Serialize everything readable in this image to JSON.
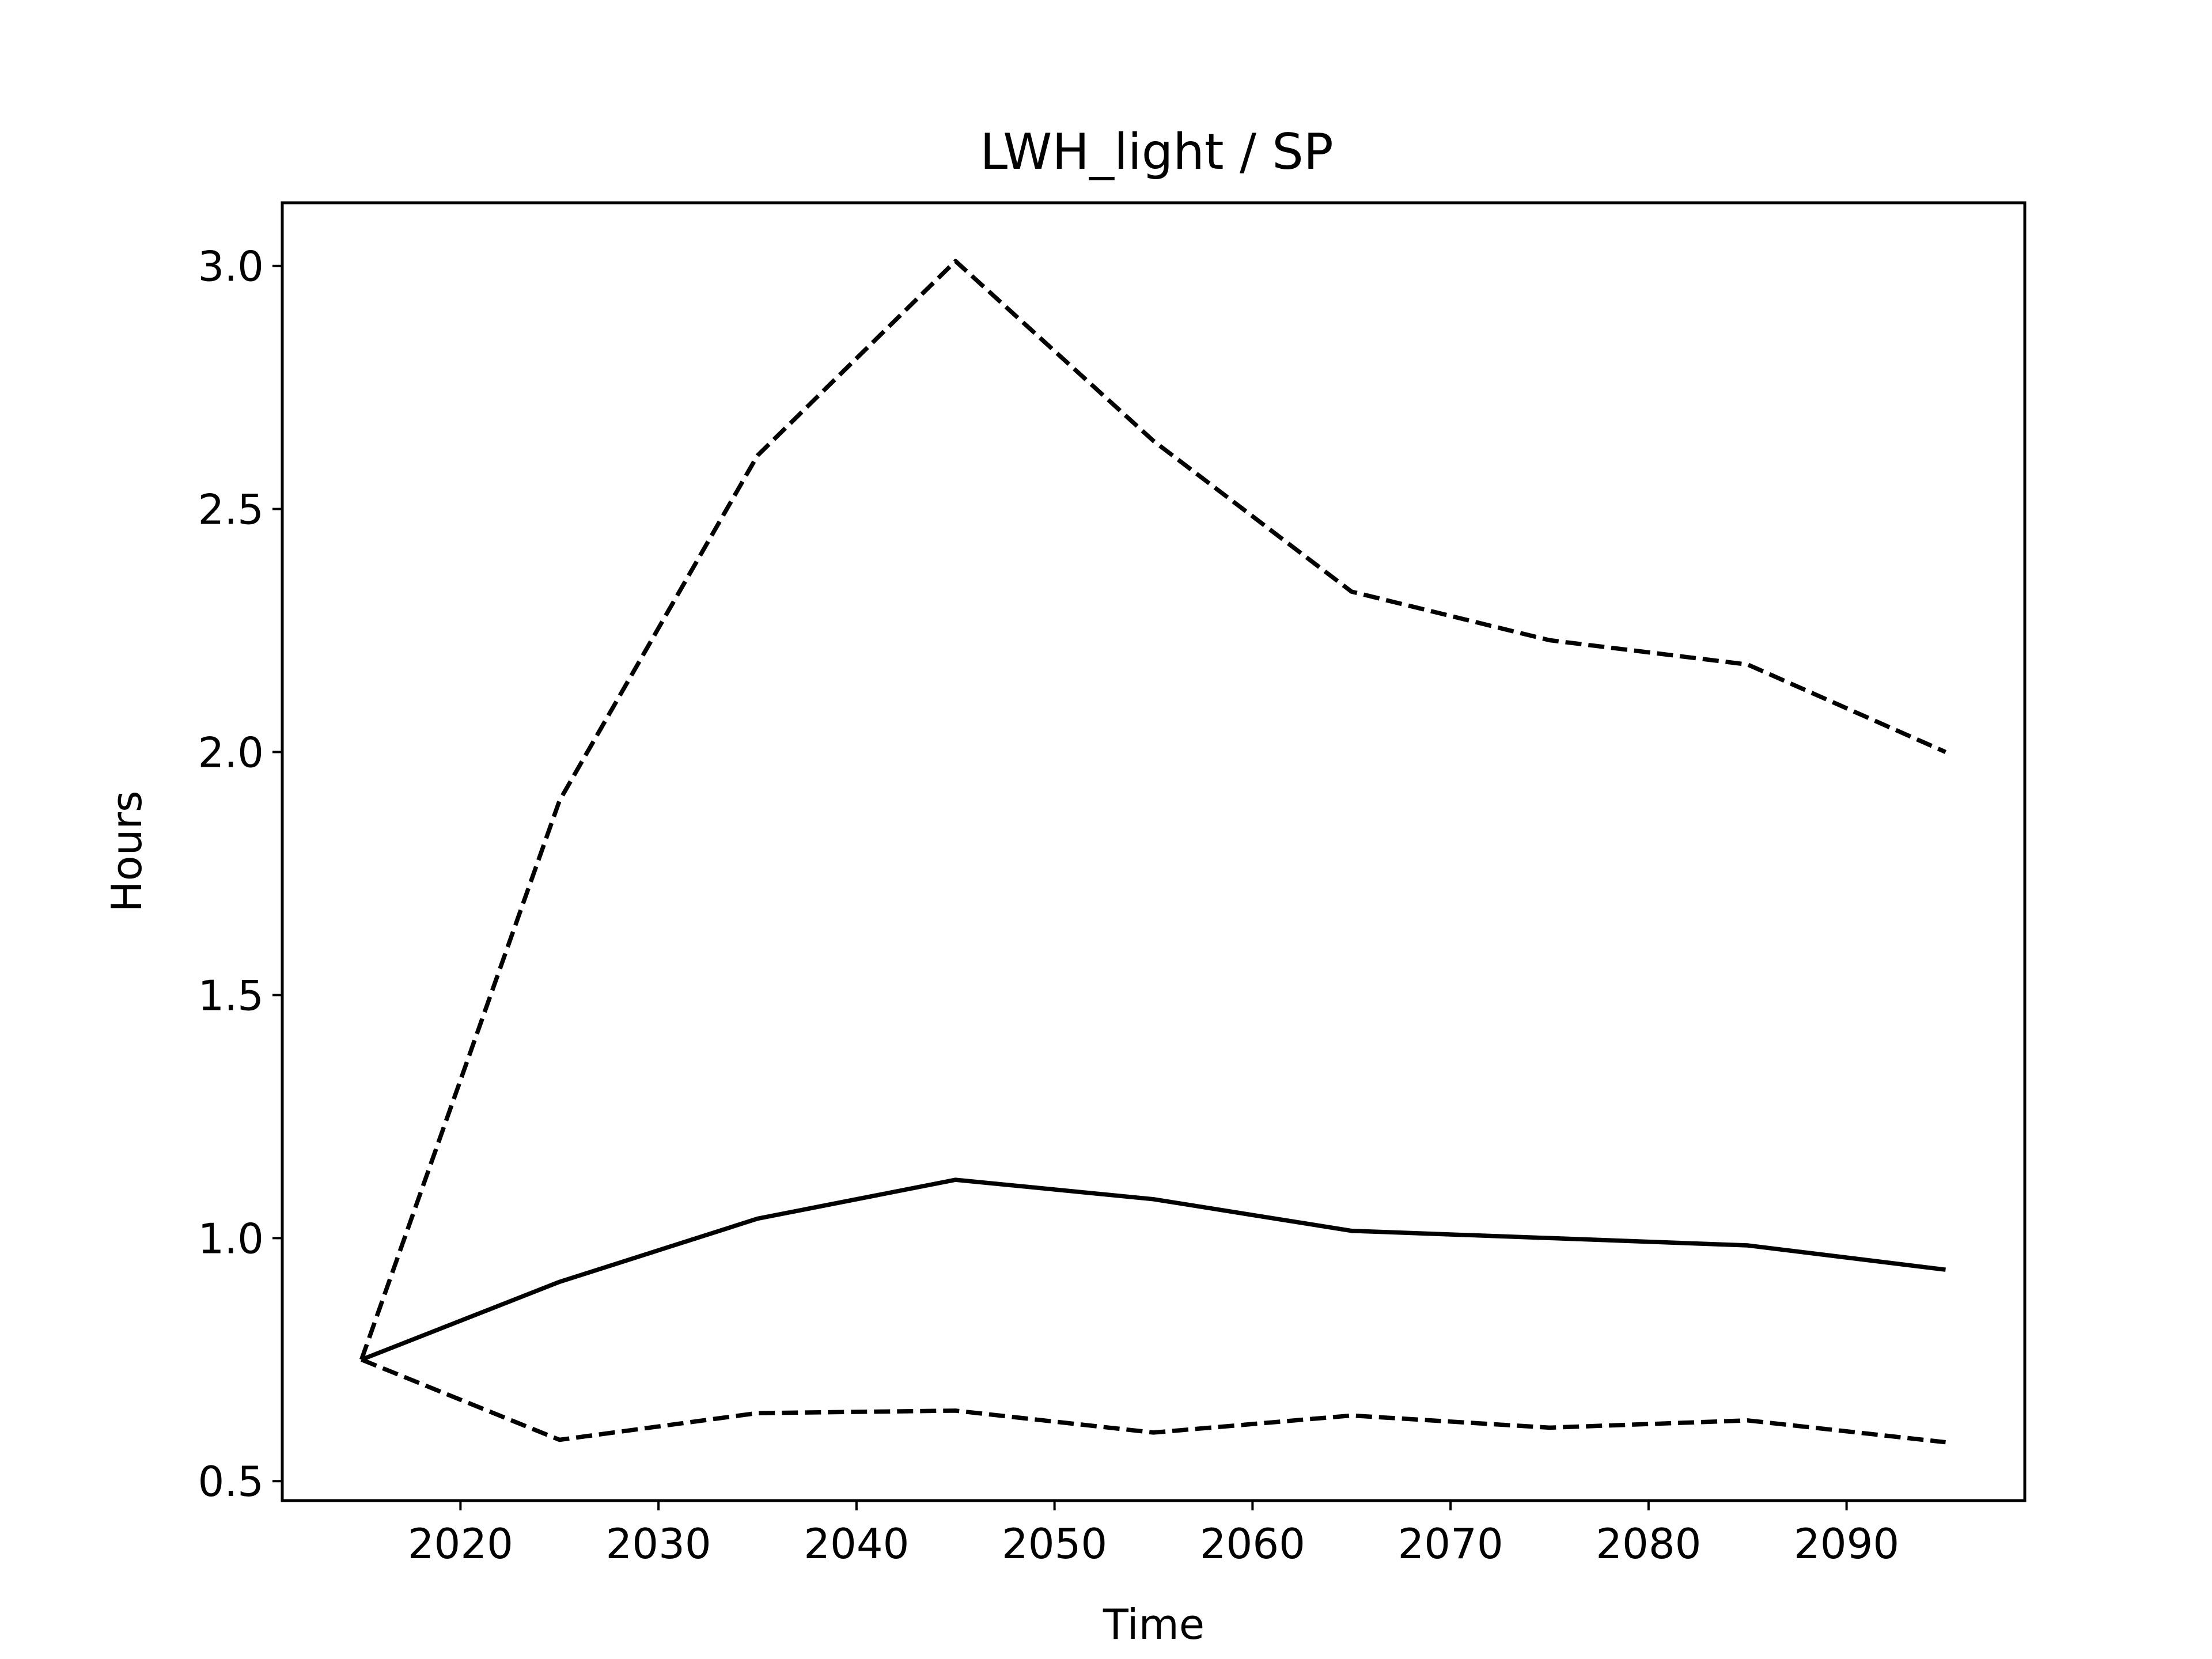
{
  "chart_data": {
    "type": "line",
    "title": "LWH_light / SP",
    "xlabel": "Time",
    "ylabel": "Hours",
    "x": [
      2015,
      2025,
      2035,
      2045,
      2055,
      2065,
      2075,
      2085,
      2095
    ],
    "xlim": [
      2011,
      2099
    ],
    "ylim": [
      0.46,
      3.13
    ],
    "xticks": [
      2020,
      2030,
      2040,
      2050,
      2060,
      2070,
      2080,
      2090
    ],
    "yticks": [
      0.5,
      1.0,
      1.5,
      2.0,
      2.5,
      3.0
    ],
    "xtick_labels": [
      "2020",
      "2030",
      "2040",
      "2050",
      "2060",
      "2070",
      "2080",
      "2090"
    ],
    "ytick_labels": [
      "0.5",
      "1.0",
      "1.5",
      "2.0",
      "2.5",
      "3.0"
    ],
    "grid": false,
    "legend": "none",
    "series": [
      {
        "style": "solid",
        "color": "#000000",
        "values": [
          0.75,
          0.91,
          1.04,
          1.12,
          1.08,
          1.015,
          1.0,
          0.985,
          0.935
        ]
      },
      {
        "style": "dashed",
        "color": "#000000",
        "values": [
          0.75,
          1.9,
          2.61,
          3.01,
          2.64,
          2.33,
          2.23,
          2.18,
          2.0
        ]
      },
      {
        "style": "dashed",
        "color": "#000000",
        "values": [
          0.75,
          0.585,
          0.64,
          0.645,
          0.6,
          0.635,
          0.61,
          0.625,
          0.58
        ]
      }
    ]
  }
}
